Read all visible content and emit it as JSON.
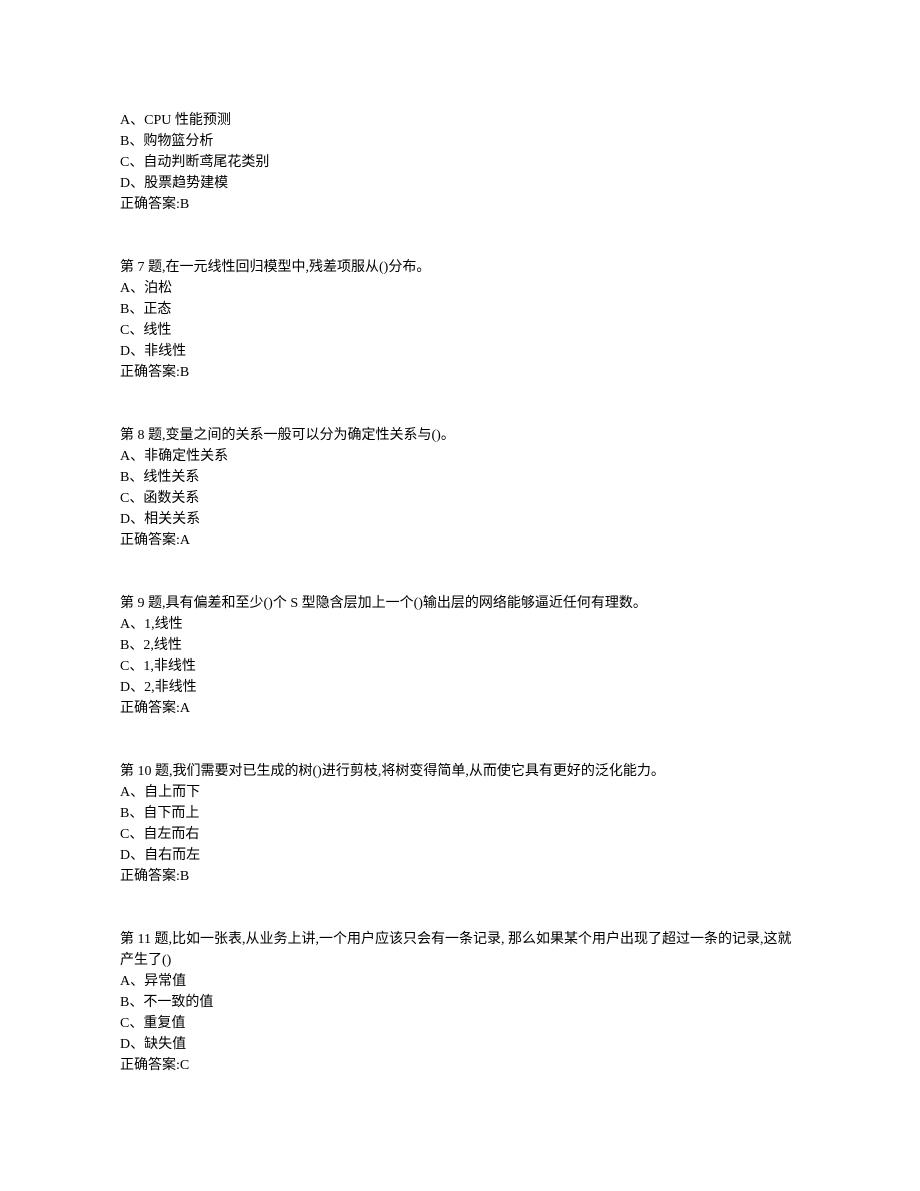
{
  "text_color": "#000000",
  "background_color": "#ffffff",
  "font_size": 14,
  "q6_remainder": {
    "options": [
      "A、CPU 性能预测",
      "B、购物篮分析",
      "C、自动判断鸢尾花类别",
      "D、股票趋势建模"
    ],
    "answer": "正确答案:B"
  },
  "questions": [
    {
      "id": "q7",
      "prompt": "第 7 题,在一元线性回归模型中,残差项服从()分布。",
      "options": [
        "A、泊松",
        "B、正态",
        "C、线性",
        "D、非线性"
      ],
      "answer": "正确答案:B"
    },
    {
      "id": "q8",
      "prompt": "第 8 题,变量之间的关系一般可以分为确定性关系与()。",
      "options": [
        "A、非确定性关系",
        "B、线性关系",
        "C、函数关系",
        "D、相关关系"
      ],
      "answer": "正确答案:A"
    },
    {
      "id": "q9",
      "prompt": "第 9 题,具有偏差和至少()个 S 型隐含层加上一个()输出层的网络能够逼近任何有理数。",
      "options": [
        "A、1,线性",
        "B、2,线性",
        "C、1,非线性",
        "D、2,非线性"
      ],
      "answer": "正确答案:A"
    },
    {
      "id": "q10",
      "prompt": "第 10 题,我们需要对已生成的树()进行剪枝,将树变得简单,从而使它具有更好的泛化能力。",
      "options": [
        "A、自上而下",
        "B、自下而上",
        "C、自左而右",
        "D、自右而左"
      ],
      "answer": "正确答案:B"
    },
    {
      "id": "q11",
      "prompt": "第 11 题,比如一张表,从业务上讲,一个用户应该只会有一条记录, 那么如果某个用户出现了超过一条的记录,这就产生了()",
      "options": [
        "A、异常值",
        "B、不一致的值",
        "C、重复值",
        "D、缺失值"
      ],
      "answer": "正确答案:C"
    }
  ]
}
